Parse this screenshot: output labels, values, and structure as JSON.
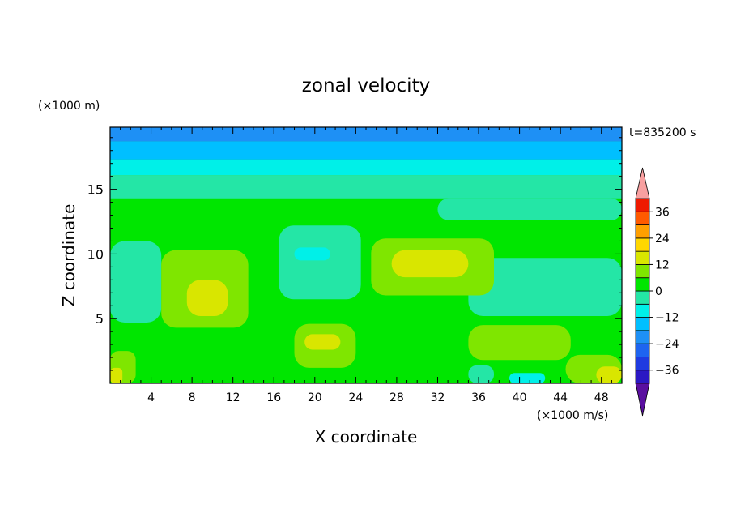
{
  "chart_data": {
    "type": "heatmap",
    "title": "zonal velocity",
    "xlabel": "X coordinate",
    "ylabel": "Z coordinate",
    "x_unit_label": "(×1000 m/s)",
    "y_unit_label": "(×1000 m)",
    "time_label": "t=835200 s",
    "xlim": [
      0,
      50
    ],
    "ylim": [
      0,
      19.8
    ],
    "x_ticks": [
      4,
      8,
      12,
      16,
      20,
      24,
      28,
      32,
      36,
      40,
      44,
      48
    ],
    "y_ticks": [
      5,
      10,
      15
    ],
    "colorbar": {
      "levels": [
        -42,
        -36,
        -30,
        -24,
        -18,
        -12,
        -6,
        0,
        6,
        12,
        18,
        24,
        30,
        36,
        42
      ],
      "colors": [
        "#5a0fa0",
        "#2b18c4",
        "#1f3be0",
        "#1e64f0",
        "#1e90f5",
        "#00bfff",
        "#00f0e8",
        "#24e6a6",
        "#00e600",
        "#7fe600",
        "#d9e600",
        "#ffd700",
        "#ff9f00",
        "#ff5a00",
        "#ee1a00",
        "#f8a0a0"
      ],
      "tick_labels": [
        "36",
        "24",
        "12",
        "0",
        "−12",
        "−24",
        "−36"
      ],
      "tick_values": [
        36,
        24,
        12,
        0,
        -12,
        -24,
        -36
      ]
    },
    "grid": false,
    "field": {
      "background": 0,
      "features": [
        {
          "x0": 0,
          "x1": 50,
          "z0": 19.8,
          "z1": 18.7,
          "value": -24
        },
        {
          "x0": 0,
          "x1": 50,
          "z0": 18.7,
          "z1": 17.3,
          "value": -18
        },
        {
          "x0": 0,
          "x1": 50,
          "z0": 17.3,
          "z1": 16.1,
          "value": -12
        },
        {
          "x0": 0,
          "x1": 50,
          "z0": 16.1,
          "z1": 14.3,
          "value": -6
        },
        {
          "x0": 32,
          "x1": 50,
          "z0": 14.3,
          "z1": 12.6,
          "value": -6
        },
        {
          "x0": 35,
          "x1": 50,
          "z0": 9.7,
          "z1": 5.2,
          "value": -6
        },
        {
          "x0": 0,
          "x1": 5,
          "z0": 11.0,
          "z1": 4.7,
          "value": -6
        },
        {
          "x0": 16.5,
          "x1": 24.5,
          "z0": 12.2,
          "z1": 6.5,
          "value": -6
        },
        {
          "x0": 18,
          "x1": 21.5,
          "z0": 10.5,
          "z1": 9.5,
          "value": -12
        },
        {
          "x0": 5,
          "x1": 13.5,
          "z0": 10.3,
          "z1": 4.3,
          "value": 6
        },
        {
          "x0": 7.5,
          "x1": 11.5,
          "z0": 8.0,
          "z1": 5.2,
          "value": 12
        },
        {
          "x0": 25.5,
          "x1": 37.5,
          "z0": 11.2,
          "z1": 6.8,
          "value": 6
        },
        {
          "x0": 27.5,
          "x1": 35,
          "z0": 10.3,
          "z1": 8.2,
          "value": 12
        },
        {
          "x0": 18,
          "x1": 24,
          "z0": 4.6,
          "z1": 1.2,
          "value": 6
        },
        {
          "x0": 19,
          "x1": 22.5,
          "z0": 3.8,
          "z1": 2.6,
          "value": 12
        },
        {
          "x0": 35,
          "x1": 45,
          "z0": 4.5,
          "z1": 1.8,
          "value": 6
        },
        {
          "x0": 44.5,
          "x1": 50,
          "z0": 2.2,
          "z1": 0,
          "value": 6
        },
        {
          "x0": 47.5,
          "x1": 50,
          "z0": 1.3,
          "z1": 0,
          "value": 12
        },
        {
          "x0": 0,
          "x1": 2.5,
          "z0": 2.5,
          "z1": 0,
          "value": 6
        },
        {
          "x0": 0,
          "x1": 1.2,
          "z0": 1.2,
          "z1": 0,
          "value": 12
        },
        {
          "x0": 35,
          "x1": 37.5,
          "z0": 1.4,
          "z1": 0,
          "value": -6
        },
        {
          "x0": 39,
          "x1": 42.5,
          "z0": 0.8,
          "z1": 0,
          "value": -12
        }
      ]
    }
  }
}
